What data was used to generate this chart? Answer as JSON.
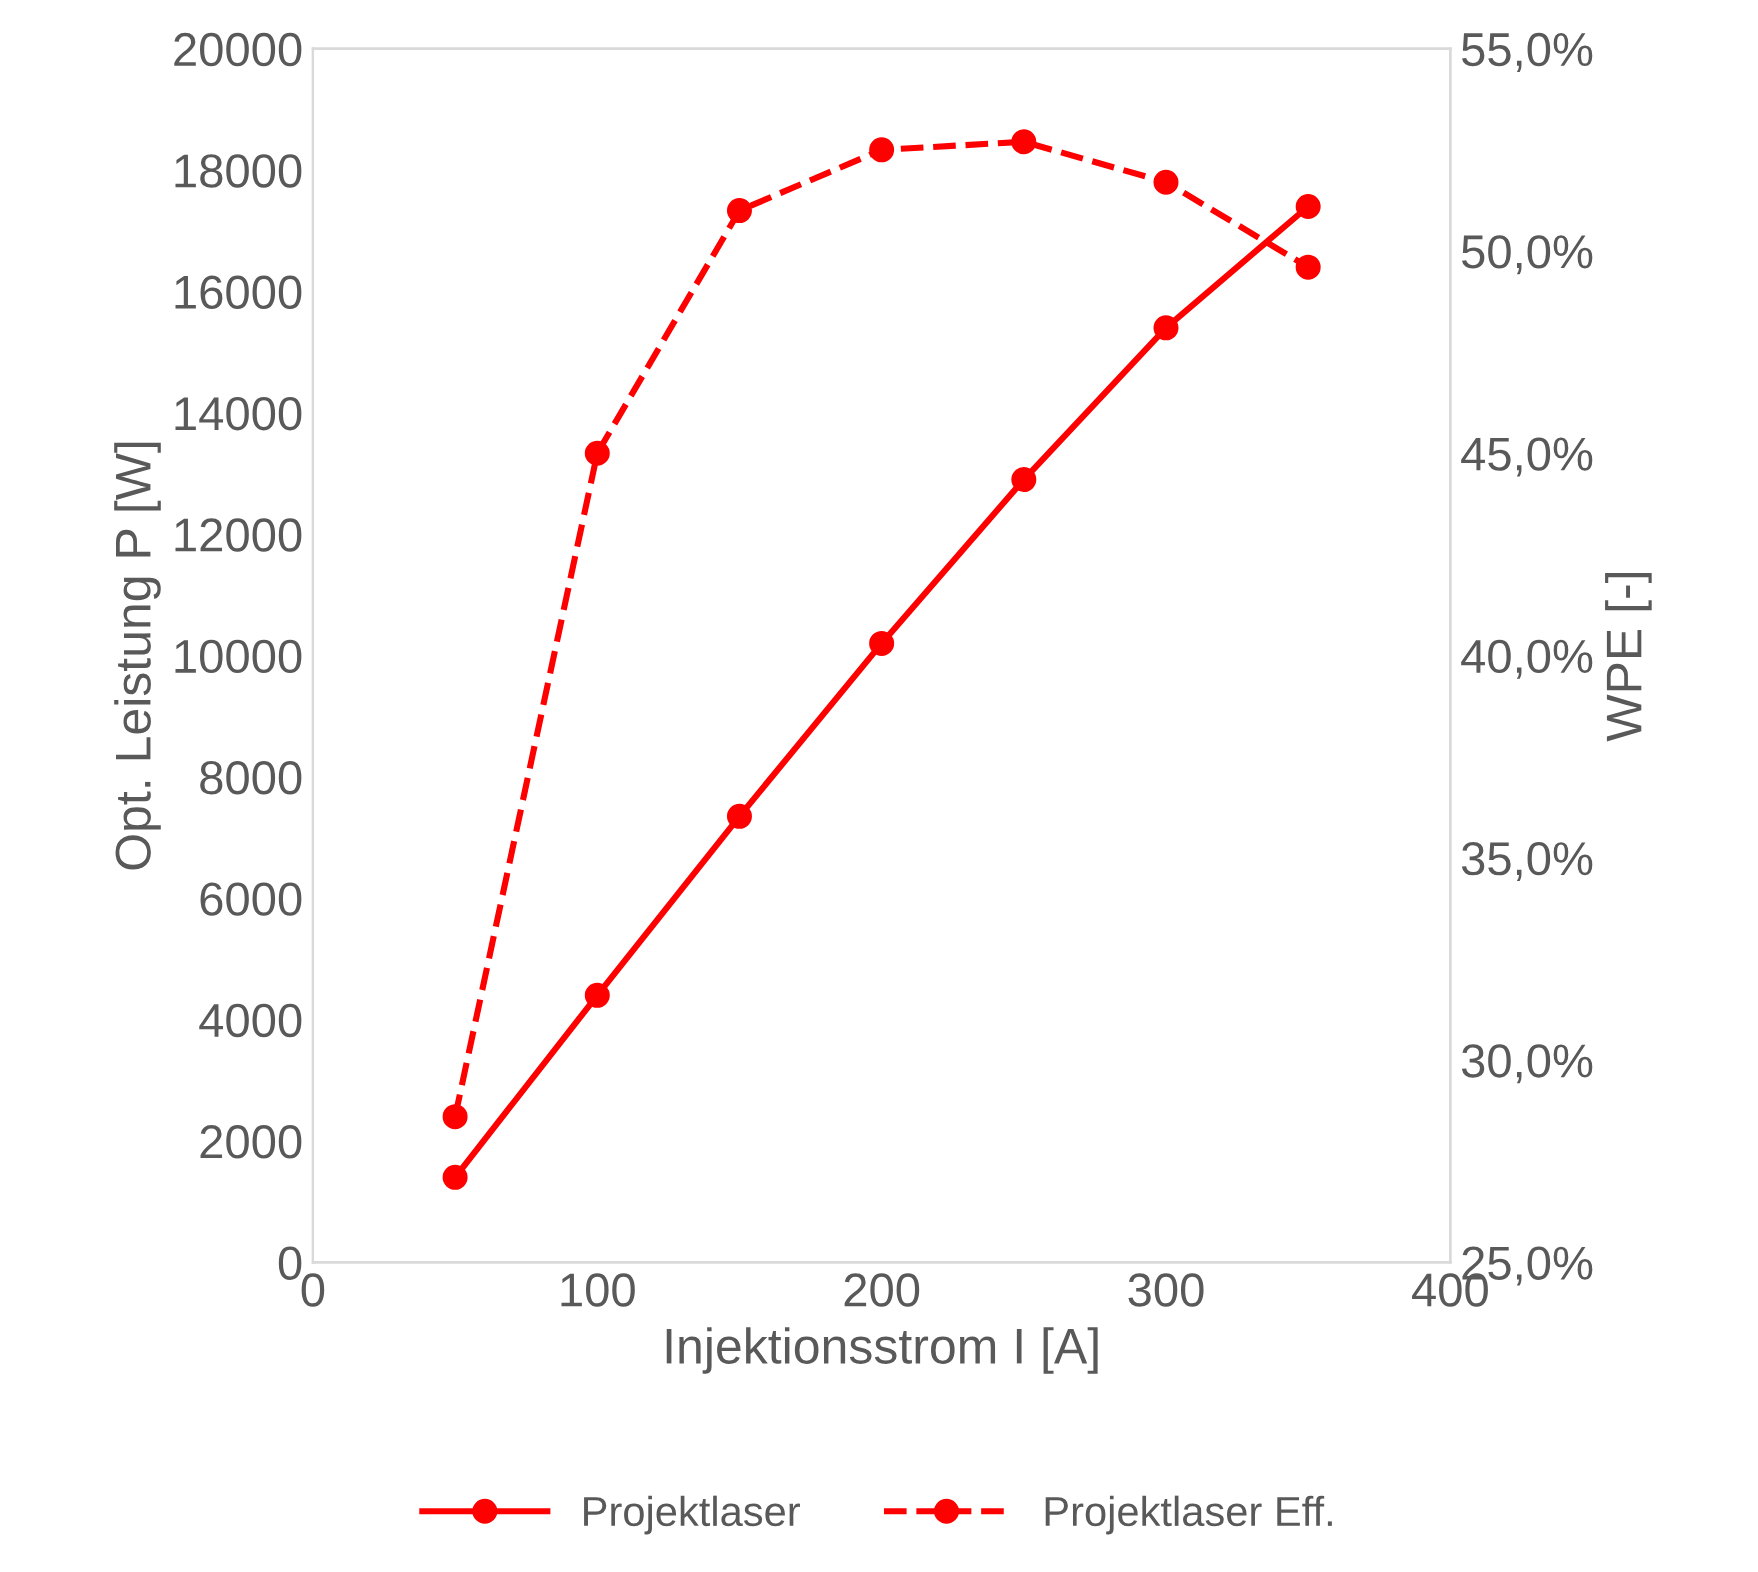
{
  "chart_data": {
    "type": "line",
    "xlabel": "Injektionsstrom I [A]",
    "ylabel": "Opt. Leistung P [W]",
    "y2label": "WPE [-]",
    "x": [
      50,
      100,
      150,
      200,
      250,
      300,
      350
    ],
    "series": [
      {
        "name": "Projektlaser",
        "color": "#ff0000",
        "values": [
          1400,
          4400,
          7350,
          10200,
          12900,
          15400,
          17400
        ],
        "line_style": "solid"
      },
      {
        "name": "Projektlaser Eff.",
        "color": "#ff0000",
        "values": [
          28.6,
          45.0,
          51.0,
          52.5,
          52.7,
          51.7,
          49.6
        ],
        "line_style": "dashed",
        "axis": "y2"
      }
    ],
    "xlim": [
      0,
      400
    ],
    "xticks": [
      0,
      100,
      200,
      300,
      400
    ],
    "ylim": [
      0,
      20000
    ],
    "yticks": [
      0,
      2000,
      4000,
      6000,
      8000,
      10000,
      12000,
      14000,
      16000,
      18000,
      20000
    ],
    "y2lim": [
      25,
      55
    ],
    "y2ticks": [
      {
        "value": 25,
        "label": "25,0%"
      },
      {
        "value": 30,
        "label": "30,0%"
      },
      {
        "value": 35,
        "label": "35,0%"
      },
      {
        "value": 40,
        "label": "40,0%"
      },
      {
        "value": 45,
        "label": "45,0%"
      },
      {
        "value": 50,
        "label": "50,0%"
      },
      {
        "value": 55,
        "label": "55,0%"
      }
    ],
    "marker": "circle",
    "grid": false,
    "legend": "bottom"
  }
}
